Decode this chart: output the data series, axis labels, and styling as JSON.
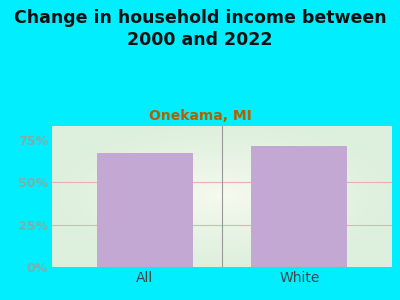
{
  "title": "Change in household income between\n2000 and 2022",
  "subtitle": "Onekama, MI",
  "categories": [
    "All",
    "White"
  ],
  "values": [
    67.0,
    71.0
  ],
  "bar_color": "#c4a8d4",
  "title_fontsize": 12.5,
  "subtitle_fontsize": 10,
  "subtitle_color": "#b36000",
  "title_color": "#111111",
  "bg_color": "#00eeff",
  "ytick_color": "#7ab0a8",
  "xtick_color": "#444444",
  "grid_color": "#e8b0b0",
  "yticks": [
    0,
    25,
    50,
    75
  ],
  "ylim": [
    0,
    83
  ],
  "separator_color": "#999999",
  "plot_area_color_center": "#f8f8f0",
  "plot_area_color_edge": "#dff0d8"
}
